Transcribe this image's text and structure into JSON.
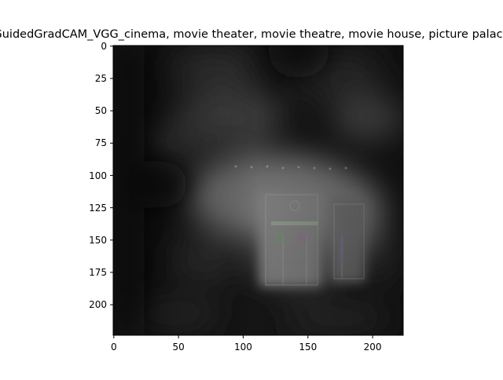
{
  "figure": {
    "title": "GuidedGradCAM_VGG_cinema, movie theater, movie theatre, movie house, picture palace"
  },
  "image": {
    "description_kind": "guided-gradcam-saliency",
    "x_range": [
      0,
      224
    ],
    "y_range": [
      0,
      224
    ],
    "x_ticks": [
      "0",
      "50",
      "100",
      "150",
      "200"
    ],
    "y_ticks": [
      "0",
      "25",
      "50",
      "75",
      "100",
      "125",
      "150",
      "175",
      "200"
    ]
  }
}
